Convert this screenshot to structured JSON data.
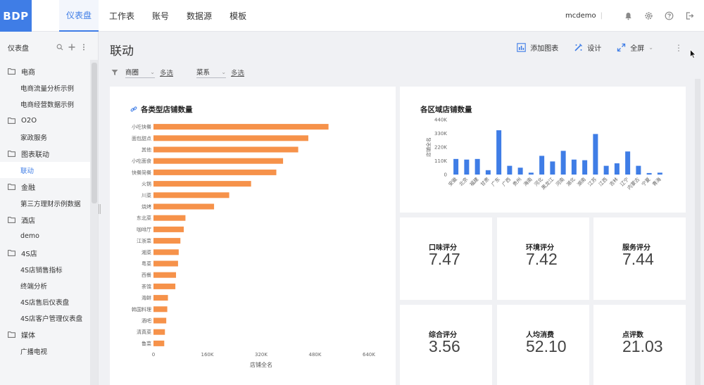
{
  "app": {
    "logo": "BDP",
    "user": "mcdemo",
    "separator": "|"
  },
  "nav": {
    "tabs": [
      "仪表盘",
      "工作表",
      "账号",
      "数据源",
      "模板"
    ],
    "active": 0
  },
  "sidebar": {
    "title": "仪表盘",
    "groups": [
      {
        "label": "电商",
        "items": [
          "电商流量分析示例",
          "电商经营数据示例"
        ]
      },
      {
        "label": "O2O",
        "items": [
          "家政服务"
        ]
      },
      {
        "label": "图表联动",
        "items": [
          "联动"
        ]
      },
      {
        "label": "金融",
        "items": [
          "第三方理财示例数据"
        ]
      },
      {
        "label": "酒店",
        "items": [
          "demo"
        ]
      },
      {
        "label": "4S店",
        "items": [
          "4S店销售指标",
          "终端分析",
          "4S店售后仪表盘",
          "4S店客户管理仪表盘"
        ]
      },
      {
        "label": "媒体",
        "items": [
          "广播电视"
        ]
      }
    ],
    "active_item": "联动"
  },
  "page": {
    "title": "联动"
  },
  "actions": {
    "add_chart": "添加图表",
    "design": "设计",
    "fullscreen": "全屏"
  },
  "filters": [
    {
      "label": "商圈",
      "multi": "多选"
    },
    {
      "label": "菜系",
      "multi": "多选"
    }
  ],
  "bar_chart": {
    "title": "各类型店铺数量",
    "color": "#f6924a",
    "chart_data": {
      "type": "bar",
      "orientation": "horizontal",
      "title": "各类型店铺数量",
      "xlabel": "店铺全名",
      "xlim": [
        0,
        640000
      ],
      "xticks": [
        "0",
        "160K",
        "320K",
        "480K",
        "640K"
      ],
      "categories": [
        "小吃快餐",
        "面包甜点",
        "其他",
        "小吃面食",
        "快餐简餐",
        "火锅",
        "川菜",
        "烧烤",
        "东北菜",
        "咖啡厅",
        "江浙菜",
        "湘菜",
        "粤菜",
        "西餐",
        "茶馆",
        "海鲜",
        "韩国料理",
        "酒吧",
        "清真菜",
        "鲁菜"
      ],
      "values": [
        520000,
        460000,
        430000,
        385000,
        365000,
        290000,
        225000,
        180000,
        95000,
        90000,
        80000,
        75000,
        73000,
        67000,
        65000,
        43000,
        41000,
        38000,
        34000,
        32000
      ]
    }
  },
  "col_chart": {
    "title": "各区域店铺数量",
    "color": "#3f7de6",
    "chart_data": {
      "type": "bar",
      "orientation": "vertical",
      "title": "各区域店铺数量",
      "ylabel": "店铺全名",
      "ylim": [
        0,
        440000
      ],
      "yticks": [
        "440K",
        "330K",
        "220K",
        "110K",
        "0"
      ],
      "categories": [
        "安徽",
        "北京",
        "福建",
        "甘肃",
        "广东",
        "广西",
        "贵州",
        "海南",
        "河北",
        "黑龙江",
        "河南",
        "湖北",
        "湖南",
        "江苏",
        "江西",
        "吉林",
        "辽宁",
        "内蒙古",
        "宁夏",
        "青海"
      ],
      "values": [
        125000,
        120000,
        125000,
        35000,
        355000,
        70000,
        55000,
        15000,
        150000,
        105000,
        190000,
        120000,
        115000,
        325000,
        70000,
        90000,
        185000,
        70000,
        12000,
        15000
      ]
    }
  },
  "metrics": [
    {
      "label": "口味评分",
      "value": "7.47"
    },
    {
      "label": "环境评分",
      "value": "7.42"
    },
    {
      "label": "服务评分",
      "value": "7.44"
    },
    {
      "label": "综合评分",
      "value": "3.56"
    },
    {
      "label": "人均消费",
      "value": "52.10"
    },
    {
      "label": "点评数",
      "value": "21.03"
    }
  ],
  "icons": [
    "search-icon",
    "plus-icon",
    "more-icon",
    "folder-icon",
    "filter-icon",
    "chart-add-icon",
    "design-icon",
    "fullscreen-icon",
    "bell-icon",
    "gear-icon",
    "help-icon",
    "logout-icon",
    "link-icon"
  ]
}
